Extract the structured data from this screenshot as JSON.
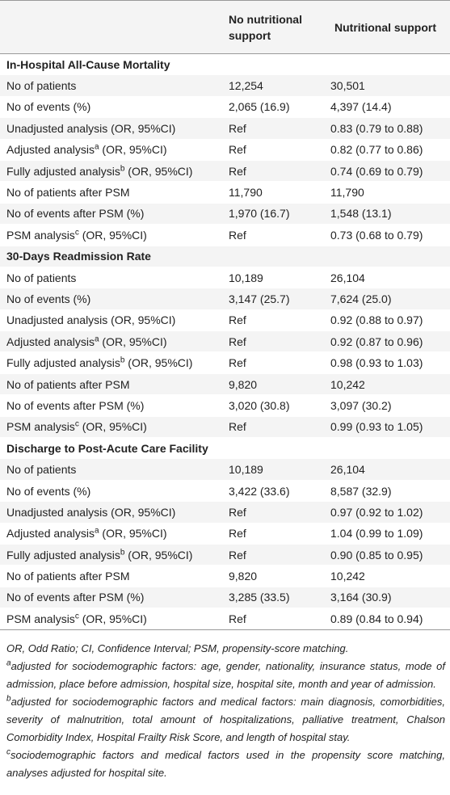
{
  "header": {
    "col1": "No nutritional support",
    "col2": "Nutritional support"
  },
  "sections": [
    {
      "title": "In-Hospital All-Cause Mortality",
      "rows": [
        {
          "label": {
            "text": "No of patients"
          },
          "values": [
            "12,254",
            "30,501"
          ]
        },
        {
          "label": {
            "text": "No of events (%)"
          },
          "values": [
            "2,065 (16.9)",
            "4,397 (14.4)"
          ]
        },
        {
          "label": {
            "text": "Unadjusted analysis (OR, 95%CI)"
          },
          "values": [
            "Ref",
            "0.83 (0.79 to 0.88)"
          ]
        },
        {
          "label": {
            "text": "Adjusted analysis",
            "sup": "a",
            "suffix": " (OR, 95%CI)"
          },
          "values": [
            "Ref",
            "0.82 (0.77 to 0.86)"
          ]
        },
        {
          "label": {
            "text": "Fully adjusted analysis",
            "sup": "b",
            "suffix": " (OR, 95%CI)"
          },
          "values": [
            "Ref",
            "0.74 (0.69 to 0.79)"
          ]
        },
        {
          "label": {
            "text": "No of patients after PSM"
          },
          "values": [
            "11,790",
            "11,790"
          ]
        },
        {
          "label": {
            "text": "No of events after PSM (%)"
          },
          "values": [
            "1,970 (16.7)",
            "1,548 (13.1)"
          ]
        },
        {
          "label": {
            "text": "PSM analysis",
            "sup": "c",
            "suffix": " (OR, 95%CI)"
          },
          "values": [
            "Ref",
            "0.73 (0.68 to 0.79)"
          ]
        }
      ]
    },
    {
      "title": "30-Days Readmission Rate",
      "rows": [
        {
          "label": {
            "text": "No of patients"
          },
          "values": [
            "10,189",
            "26,104"
          ]
        },
        {
          "label": {
            "text": "No of events (%)"
          },
          "values": [
            "3,147 (25.7)",
            "7,624 (25.0)"
          ]
        },
        {
          "label": {
            "text": "Unadjusted analysis (OR, 95%CI)"
          },
          "values": [
            "Ref",
            "0.92 (0.88 to 0.97)"
          ]
        },
        {
          "label": {
            "text": "Adjusted analysis",
            "sup": "a",
            "suffix": " (OR, 95%CI)"
          },
          "values": [
            "Ref",
            "0.92 (0.87 to 0.96)"
          ]
        },
        {
          "label": {
            "text": "Fully adjusted analysis",
            "sup": "b",
            "suffix": " (OR, 95%CI)"
          },
          "values": [
            "Ref",
            "0.98 (0.93 to 1.03)"
          ]
        },
        {
          "label": {
            "text": "No of patients after PSM"
          },
          "values": [
            "9,820",
            "10,242"
          ]
        },
        {
          "label": {
            "text": "No of events after PSM (%)"
          },
          "values": [
            "3,020 (30.8)",
            "3,097 (30.2)"
          ]
        },
        {
          "label": {
            "text": "PSM analysis",
            "sup": "c",
            "suffix": " (OR, 95%CI)"
          },
          "values": [
            "Ref",
            "0.99 (0.93 to 1.05)"
          ]
        }
      ]
    },
    {
      "title": "Discharge to Post-Acute Care Facility",
      "rows": [
        {
          "label": {
            "text": "No of patients"
          },
          "values": [
            "10,189",
            "26,104"
          ]
        },
        {
          "label": {
            "text": "No of events (%)"
          },
          "values": [
            "3,422 (33.6)",
            "8,587 (32.9)"
          ]
        },
        {
          "label": {
            "text": "Unadjusted analysis (OR, 95%CI)"
          },
          "values": [
            "Ref",
            "0.97 (0.92 to 1.02)"
          ]
        },
        {
          "label": {
            "text": "Adjusted analysis",
            "sup": "a",
            "suffix": " (OR, 95%CI)"
          },
          "values": [
            "Ref",
            "1.04 (0.99 to 1.09)"
          ]
        },
        {
          "label": {
            "text": "Fully adjusted analysis",
            "sup": "b",
            "suffix": " (OR, 95%CI)"
          },
          "values": [
            "Ref",
            "0.90 (0.85 to 0.95)"
          ]
        },
        {
          "label": {
            "text": "No of patients after PSM"
          },
          "values": [
            "9,820",
            "10,242"
          ]
        },
        {
          "label": {
            "text": "No of events after PSM (%)"
          },
          "values": [
            "3,285 (33.5)",
            "3,164 (30.9)"
          ]
        },
        {
          "label": {
            "text": "PSM analysis",
            "sup": "c",
            "suffix": " (OR, 95%CI)"
          },
          "values": [
            "Ref",
            "0.89 (0.84 to 0.94)"
          ]
        }
      ]
    }
  ],
  "footnotes": [
    {
      "text": "OR, Odd Ratio; CI, Confidence Interval; PSM, propensity-score matching."
    },
    {
      "sup": "a",
      "text": "adjusted for sociodemographic factors: age, gender, nationality, insurance status, mode of admission, place before admission, hospital size, hospital site, month and year of admission."
    },
    {
      "sup": "b",
      "text": "adjusted for sociodemographic factors and medical factors: main diagnosis, comorbidities, severity of malnutrition, total amount of hospitalizations, palliative treatment, Chalson Comorbidity Index, Hospital Frailty Risk Score, and length of hospital stay."
    },
    {
      "sup": "c",
      "text": "sociodemographic factors and medical factors used in the propensity score matching, analyses adjusted for hospital site."
    }
  ]
}
